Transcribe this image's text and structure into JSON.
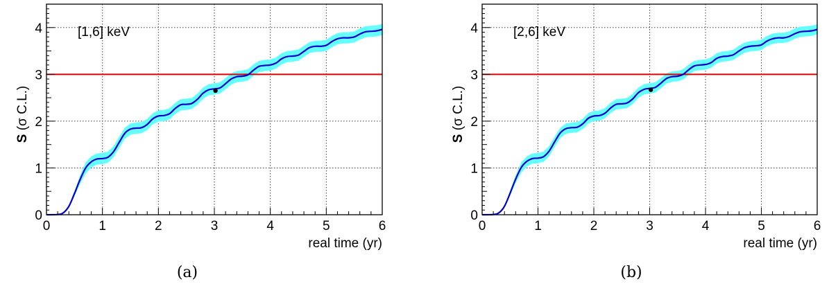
{
  "chart_data": [
    {
      "type": "line",
      "caption": "(a)",
      "annotation": "[1,6] keV",
      "xlabel": "real time (yr)",
      "ylabel_bold": "S",
      "ylabel_rest": " (σ C.L.)",
      "xlim": [
        0,
        6
      ],
      "ylim": [
        0,
        4.5
      ],
      "xticks": [
        0,
        1,
        2,
        3,
        4,
        5,
        6
      ],
      "yticks": [
        0,
        1,
        2,
        3,
        4
      ],
      "grid": true,
      "threshold": 3,
      "marker": {
        "x": 3.02,
        "y": 2.65
      },
      "band_halfwidth": 0.12,
      "series": [
        {
          "values_x": [
            0,
            0.2,
            0.3,
            0.4,
            0.5,
            0.6,
            0.7,
            0.8,
            0.9,
            1.0,
            1.1,
            1.2,
            1.3,
            1.4,
            1.5,
            1.6,
            1.7,
            1.8,
            1.9,
            2.0,
            2.1,
            2.2,
            2.3,
            2.4,
            2.5,
            2.6,
            2.7,
            2.8,
            2.9,
            3.0,
            3.1,
            3.2,
            3.3,
            3.4,
            3.5,
            3.6,
            3.7,
            3.8,
            3.9,
            4.0,
            4.1,
            4.2,
            4.3,
            4.4,
            4.5,
            4.6,
            4.7,
            4.8,
            4.9,
            5.0,
            5.1,
            5.2,
            5.3,
            5.4,
            5.5,
            5.6,
            5.7,
            5.8,
            5.9,
            6.0
          ],
          "values_y": [
            0,
            0.005,
            0.04,
            0.18,
            0.45,
            0.75,
            1.0,
            1.13,
            1.19,
            1.2,
            1.23,
            1.35,
            1.55,
            1.74,
            1.83,
            1.85,
            1.86,
            1.93,
            2.05,
            2.11,
            2.12,
            2.16,
            2.27,
            2.35,
            2.36,
            2.38,
            2.47,
            2.6,
            2.67,
            2.69,
            2.71,
            2.8,
            2.9,
            2.95,
            2.96,
            2.99,
            3.09,
            3.17,
            3.19,
            3.2,
            3.24,
            3.33,
            3.38,
            3.39,
            3.41,
            3.49,
            3.57,
            3.6,
            3.6,
            3.62,
            3.7,
            3.76,
            3.78,
            3.78,
            3.8,
            3.86,
            3.91,
            3.92,
            3.93,
            3.96
          ]
        }
      ]
    },
    {
      "type": "line",
      "caption": "(b)",
      "annotation": "[2,6] keV",
      "xlabel": "real time (yr)",
      "ylabel_bold": "S",
      "ylabel_rest": " (σ C.L.)",
      "xlim": [
        0,
        6
      ],
      "ylim": [
        0,
        4.5
      ],
      "xticks": [
        0,
        1,
        2,
        3,
        4,
        5,
        6
      ],
      "yticks": [
        0,
        1,
        2,
        3,
        4
      ],
      "grid": true,
      "threshold": 3,
      "marker": {
        "x": 3.02,
        "y": 2.67
      },
      "band_halfwidth": 0.11,
      "series": [
        {
          "values_x": [
            0,
            0.2,
            0.3,
            0.4,
            0.5,
            0.6,
            0.7,
            0.8,
            0.9,
            1.0,
            1.1,
            1.2,
            1.3,
            1.4,
            1.5,
            1.6,
            1.7,
            1.8,
            1.9,
            2.0,
            2.1,
            2.2,
            2.3,
            2.4,
            2.5,
            2.6,
            2.7,
            2.8,
            2.9,
            3.0,
            3.1,
            3.2,
            3.3,
            3.4,
            3.5,
            3.6,
            3.7,
            3.8,
            3.9,
            4.0,
            4.1,
            4.2,
            4.3,
            4.4,
            4.5,
            4.6,
            4.7,
            4.8,
            4.9,
            5.0,
            5.1,
            5.2,
            5.3,
            5.4,
            5.5,
            5.6,
            5.7,
            5.8,
            5.9,
            6.0
          ],
          "values_y": [
            0,
            0.005,
            0.04,
            0.18,
            0.46,
            0.76,
            1.01,
            1.14,
            1.2,
            1.21,
            1.24,
            1.36,
            1.56,
            1.75,
            1.84,
            1.86,
            1.87,
            1.94,
            2.06,
            2.11,
            2.12,
            2.17,
            2.28,
            2.36,
            2.37,
            2.39,
            2.48,
            2.61,
            2.68,
            2.7,
            2.72,
            2.81,
            2.91,
            2.95,
            2.96,
            3.0,
            3.1,
            3.18,
            3.2,
            3.21,
            3.25,
            3.34,
            3.38,
            3.39,
            3.42,
            3.5,
            3.57,
            3.6,
            3.61,
            3.63,
            3.71,
            3.76,
            3.78,
            3.78,
            3.81,
            3.87,
            3.91,
            3.92,
            3.93,
            3.96
          ]
        }
      ]
    }
  ],
  "colors": {
    "curve": "#0000cc",
    "band": "#66ffff",
    "threshold": "#dd0000",
    "grid": "#444444",
    "marker": "#000000"
  }
}
